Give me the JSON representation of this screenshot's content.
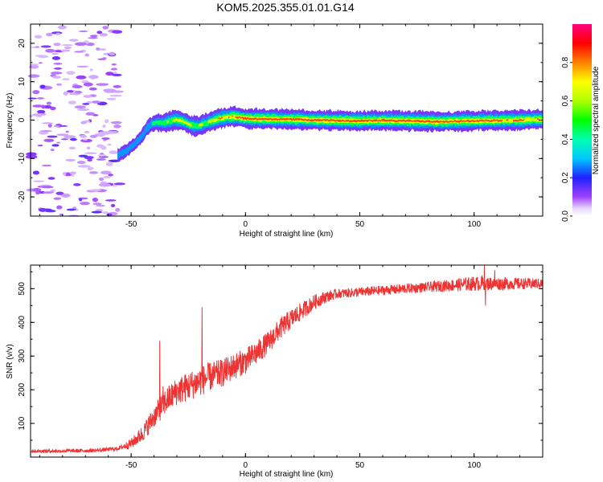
{
  "title": "KOM5.2025.355.01.01.G14",
  "colors": {
    "snr_line": "#ee3333",
    "background": "#ffffff",
    "axis": "#000000"
  },
  "chart_data": [
    {
      "type": "heatmap",
      "name": "spectrogram",
      "xlabel": "Height of straight line (km)",
      "ylabel": "Frequency (Hz)",
      "xlim": [
        -94,
        130
      ],
      "ylim": [
        -25,
        25
      ],
      "xticks": [
        -50,
        0,
        50,
        100
      ],
      "yticks": [
        -20,
        -10,
        0,
        10,
        20
      ],
      "xtick_labels": [
        "-50",
        "0",
        "50",
        "100"
      ],
      "ytick_labels": [
        "-20",
        "-10",
        "0",
        "10",
        "20"
      ],
      "colorbar": {
        "label": "Normalized spectral amplitude",
        "range": [
          0,
          1
        ],
        "ticks": [
          0.0,
          0.2,
          0.4,
          0.6,
          0.8
        ],
        "tick_labels": [
          "0.0",
          "0.2",
          "0.4",
          "0.6",
          "0.8"
        ]
      },
      "ridge_frequency": {
        "x": [
          -56,
          -52,
          -48,
          -45,
          -43,
          -41,
          -39,
          -36,
          -33,
          -30,
          -27,
          -24,
          -21,
          -18,
          -15,
          -12,
          -9,
          -6,
          -3,
          0,
          10,
          20,
          30,
          40,
          50,
          60,
          70,
          80,
          85,
          90,
          100,
          110,
          120,
          130
        ],
        "y": [
          -9.2,
          -8.0,
          -6.0,
          -4.0,
          -2.0,
          -1.0,
          -0.6,
          -0.8,
          -0.2,
          0.1,
          -0.4,
          -1.3,
          -1.6,
          -1.0,
          -0.3,
          0.3,
          0.7,
          0.9,
          0.8,
          0.4,
          0.3,
          0.2,
          0.0,
          -0.1,
          -0.2,
          -0.1,
          -0.2,
          -0.3,
          -0.4,
          -0.3,
          -0.2,
          -0.1,
          0.0,
          0.2
        ]
      },
      "ridge_amplitude": {
        "x": [
          -56,
          -45,
          -40,
          -30,
          -20,
          -10,
          0,
          10,
          20,
          40,
          60,
          80,
          100,
          120,
          130
        ],
        "y": [
          0.3,
          0.32,
          0.45,
          0.7,
          0.6,
          0.8,
          0.95,
          0.9,
          0.92,
          0.95,
          0.93,
          0.95,
          0.92,
          0.85,
          0.8
        ]
      },
      "noise_region_x": [
        -94,
        -55
      ]
    },
    {
      "type": "line",
      "name": "snr",
      "xlabel": "Height of straight line (km)",
      "ylabel": "SNR (v/v)",
      "xlim": [
        -94,
        130
      ],
      "ylim": [
        0,
        570
      ],
      "xticks": [
        -50,
        0,
        50,
        100
      ],
      "yticks": [
        100,
        200,
        300,
        400,
        500
      ],
      "xtick_labels": [
        "-50",
        "0",
        "50",
        "100"
      ],
      "ytick_labels": [
        "100",
        "200",
        "300",
        "400",
        "500"
      ],
      "series": [
        {
          "name": "SNR",
          "trend_x": [
            -94,
            -80,
            -65,
            -56,
            -50,
            -45,
            -40,
            -35,
            -30,
            -25,
            -20,
            -15,
            -10,
            -5,
            0,
            5,
            10,
            15,
            20,
            25,
            30,
            35,
            40,
            50,
            60,
            70,
            80,
            90,
            100,
            110,
            120,
            130
          ],
          "trend_y": [
            18,
            18,
            20,
            25,
            40,
            70,
            120,
            165,
            195,
            210,
            225,
            240,
            250,
            270,
            285,
            310,
            340,
            380,
            410,
            435,
            460,
            475,
            485,
            490,
            495,
            500,
            505,
            510,
            515,
            515,
            515,
            515
          ],
          "noise_x": [
            -94,
            -55,
            -45,
            -35,
            -20,
            0,
            20,
            40,
            80,
            100,
            130
          ],
          "noise_amp": [
            5,
            6,
            25,
            40,
            45,
            38,
            30,
            14,
            15,
            22,
            15
          ],
          "spikes": [
            {
              "x": -37.5,
              "y": 345
            },
            {
              "x": -19.0,
              "y": 445
            },
            {
              "x": -36.0,
              "y": 210
            },
            {
              "x": 104.5,
              "y": 570
            },
            {
              "x": 103.5,
              "y": 540
            },
            {
              "x": 105.0,
              "y": 450
            },
            {
              "x": 109.0,
              "y": 555
            }
          ]
        }
      ]
    }
  ]
}
